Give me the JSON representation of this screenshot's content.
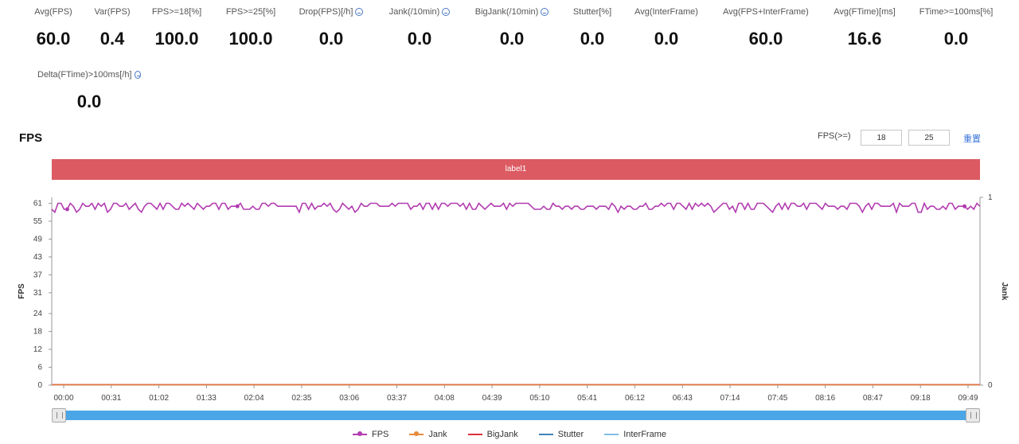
{
  "stats": [
    {
      "label": "Avg(FPS)",
      "value": "60.0",
      "info": false
    },
    {
      "label": "Var(FPS)",
      "value": "0.4",
      "info": false
    },
    {
      "label": "FPS>=18[%]",
      "value": "100.0",
      "info": false
    },
    {
      "label": "FPS>=25[%]",
      "value": "100.0",
      "info": false
    },
    {
      "label": "Drop(FPS)[/h]",
      "value": "0.0",
      "info": true
    },
    {
      "label": "Jank(/10min)",
      "value": "0.0",
      "info": true
    },
    {
      "label": "BigJank(/10min)",
      "value": "0.0",
      "info": true
    },
    {
      "label": "Stutter[%]",
      "value": "0.0",
      "info": false
    },
    {
      "label": "Avg(InterFrame)",
      "value": "0.0",
      "info": false
    },
    {
      "label": "Avg(FPS+InterFrame)",
      "value": "60.0",
      "info": false
    },
    {
      "label": "Avg(FTime)[ms]",
      "value": "16.6",
      "info": false
    },
    {
      "label": "FTime>=100ms[%]",
      "value": "0.0",
      "info": false
    },
    {
      "label": "Delta(FTime)>100ms[/h]",
      "value": "0.0",
      "info": true
    }
  ],
  "section": {
    "title": "FPS",
    "threshold_label": "FPS(>=)",
    "threshold_low": "18",
    "threshold_high": "25",
    "reset_label": "重置"
  },
  "label_bar": {
    "text": "label1",
    "color": "#dc5a62"
  },
  "colors": {
    "fps": "#b23cb0",
    "jank": "#e8893a",
    "bigjank": "#d9313c",
    "stutter": "#3f83b8",
    "interframe": "#7fbde8",
    "slider": "#4aa6e6"
  },
  "chart_data": {
    "type": "line",
    "ylabel": "FPS",
    "y2label": "Jank",
    "y_ticks": [
      "0",
      "6",
      "12",
      "18",
      "24",
      "31",
      "37",
      "43",
      "49",
      "55",
      "61"
    ],
    "ylim": [
      0,
      63
    ],
    "y2_ticks": [
      "0",
      "1"
    ],
    "y2lim": [
      0,
      1
    ],
    "x_ticks": [
      "00:00",
      "00:31",
      "01:02",
      "01:33",
      "02:04",
      "02:35",
      "03:06",
      "03:37",
      "04:08",
      "04:39",
      "05:10",
      "05:41",
      "06:12",
      "06:43",
      "07:14",
      "07:45",
      "08:16",
      "08:47",
      "09:18",
      "09:49"
    ],
    "x_range_seconds": [
      0,
      600
    ],
    "grid": false,
    "legend_position": "bottom",
    "series": [
      {
        "name": "FPS",
        "typical_value": 60,
        "min_value": 57,
        "max_value": 61
      },
      {
        "name": "Jank",
        "typical_value": 0
      },
      {
        "name": "BigJank",
        "typical_value": 0
      },
      {
        "name": "Stutter",
        "typical_value": 0
      },
      {
        "name": "InterFrame",
        "typical_value": 0
      }
    ]
  },
  "legend": [
    {
      "label": "FPS",
      "icon": "line-dot-icon"
    },
    {
      "label": "Jank",
      "icon": "line-dot-icon"
    },
    {
      "label": "BigJank",
      "icon": "line-icon"
    },
    {
      "label": "Stutter",
      "icon": "line-icon"
    },
    {
      "label": "InterFrame",
      "icon": "line-icon"
    }
  ]
}
